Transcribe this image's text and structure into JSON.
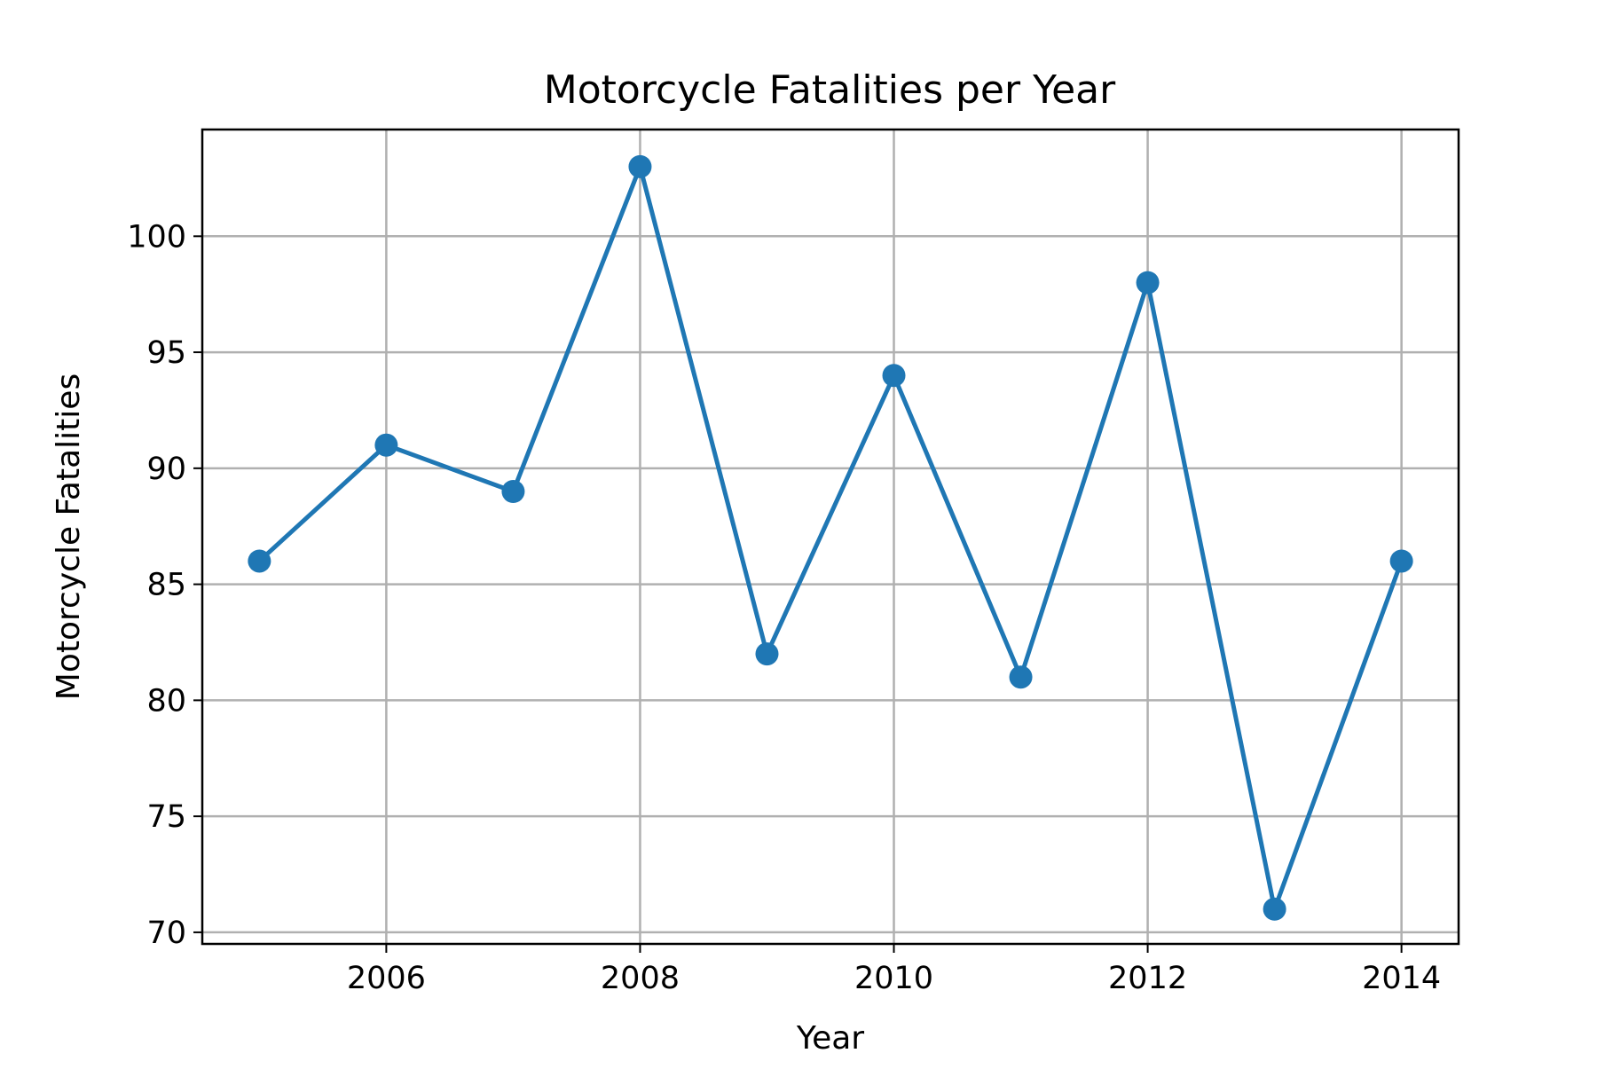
{
  "chart_data": {
    "type": "line",
    "title": "Motorcycle Fatalities per Year",
    "xlabel": "Year",
    "ylabel": "Motorcycle Fatalities",
    "x": [
      2005,
      2006,
      2007,
      2008,
      2009,
      2010,
      2011,
      2012,
      2013,
      2014
    ],
    "series": [
      {
        "values": [
          86,
          91,
          89,
          103,
          82,
          94,
          81,
          98,
          71,
          86
        ]
      }
    ],
    "xlim": [
      2004.55,
      2014.45
    ],
    "ylim": [
      69.5,
      104.6
    ],
    "xticks": [
      2006,
      2008,
      2010,
      2012,
      2014
    ],
    "yticks": [
      70,
      75,
      80,
      85,
      90,
      95,
      100
    ],
    "grid": true,
    "legend": "none",
    "marker": "circle",
    "colors": {
      "series": "#1f77b4",
      "grid": "#b0b0b0",
      "axes": "#000000"
    }
  }
}
